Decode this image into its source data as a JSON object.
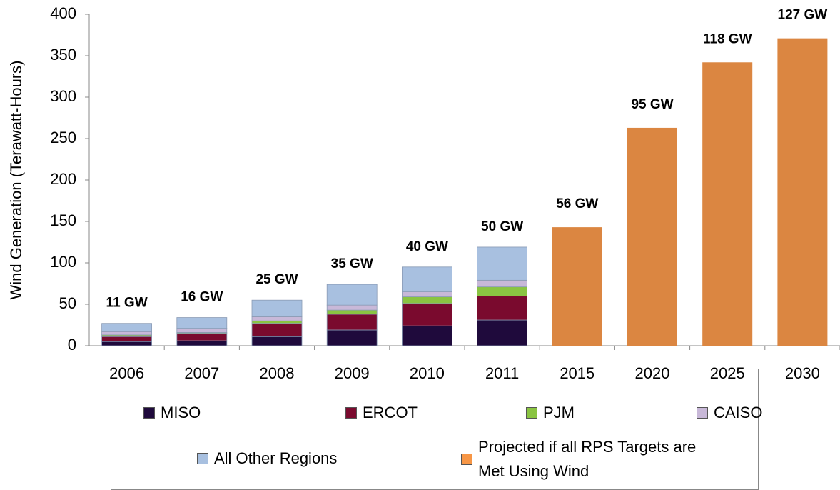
{
  "chart_data": {
    "type": "stacked_bar",
    "y_label": "Wind Generation (Terawatt-Hours)",
    "categories": [
      "2006",
      "2007",
      "2008",
      "2009",
      "2010",
      "2011",
      "2015",
      "2020",
      "2025",
      "2030"
    ],
    "capacity_labels": [
      "11 GW",
      "16 GW",
      "25 GW",
      "35 GW",
      "40 GW",
      "50 GW",
      "56 GW",
      "95 GW",
      "118 GW",
      "127 GW"
    ],
    "series": [
      {
        "name": "MISO",
        "color": "#1f0a3c",
        "values": [
          5,
          6,
          11,
          19,
          24,
          31,
          null,
          null,
          null,
          null
        ]
      },
      {
        "name": "ERCOT",
        "color": "#7a0a2e",
        "values": [
          6,
          9,
          16,
          19,
          27,
          29,
          null,
          null,
          null,
          null
        ]
      },
      {
        "name": "PJM",
        "color": "#8ac442",
        "values": [
          2,
          1,
          3,
          5,
          8,
          11,
          null,
          null,
          null,
          null
        ]
      },
      {
        "name": "CAISO",
        "color": "#c8b8d8",
        "values": [
          4,
          5,
          5,
          6,
          6,
          8,
          null,
          null,
          null,
          null
        ]
      },
      {
        "name": "All Other Regions",
        "color": "#a8c0e0",
        "values": [
          10,
          13,
          20,
          25,
          30,
          40,
          null,
          null,
          null,
          null
        ]
      },
      {
        "name": "Projected if all RPS Targets are Met Using Wind",
        "color": "#db8641",
        "values": [
          null,
          null,
          null,
          null,
          null,
          null,
          143,
          263,
          342,
          371
        ]
      }
    ],
    "ylim": [
      0,
      400
    ],
    "yticks": [
      0,
      50,
      100,
      150,
      200,
      250,
      300,
      350,
      400
    ]
  }
}
